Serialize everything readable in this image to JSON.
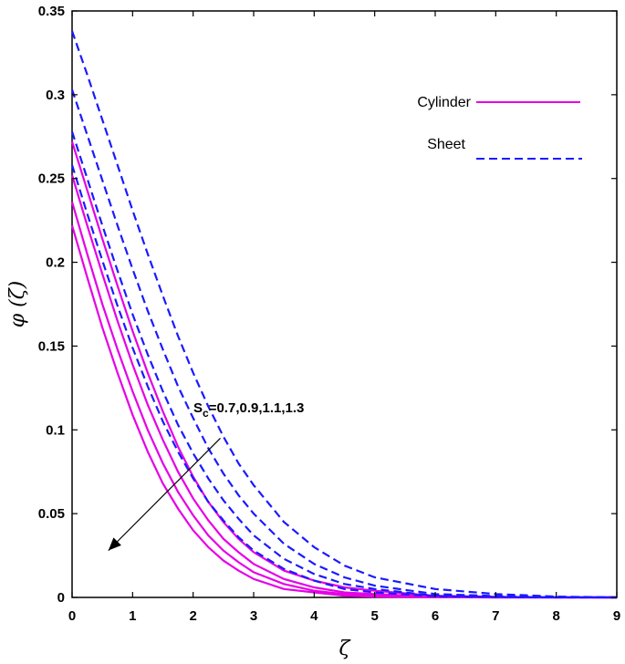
{
  "chart_data": {
    "type": "line",
    "xlabel": "ζ",
    "ylabel": "φ (ζ)",
    "xlim": [
      0,
      9
    ],
    "ylim": [
      0,
      0.35
    ],
    "xticks": [
      "0",
      "1",
      "2",
      "3",
      "4",
      "5",
      "6",
      "7",
      "8",
      "9"
    ],
    "yticks": [
      "0",
      "0.05",
      "0.1",
      "0.15",
      "0.2",
      "0.25",
      "0.3",
      "0.35"
    ],
    "grid": false,
    "legend": {
      "position": "top-right",
      "entries": [
        {
          "label": "Cylinder",
          "color": "#e600e6",
          "style": "solid"
        },
        {
          "label": "Sheet",
          "color": "#1a1aff",
          "style": "dashed"
        }
      ]
    },
    "annotation": {
      "base": "S",
      "subscript": "c",
      "text": "=0.7,0.9,1.1,1.3",
      "arrow_from": [
        2.45,
        0.095
      ],
      "arrow_to": [
        0.6,
        0.028
      ]
    },
    "series": [
      {
        "group": "Cylinder",
        "color": "#e600e6",
        "dash": false,
        "x": [
          0,
          0.25,
          0.5,
          0.75,
          1,
          1.25,
          1.5,
          1.75,
          2,
          2.25,
          2.5,
          2.75,
          3,
          3.5,
          4,
          4.5,
          5,
          6,
          7,
          8,
          9
        ],
        "y": [
          0.272,
          0.243,
          0.214,
          0.186,
          0.159,
          0.134,
          0.111,
          0.09,
          0.072,
          0.057,
          0.045,
          0.035,
          0.027,
          0.016,
          0.01,
          0.006,
          0.004,
          0.001,
          0.0004,
          0.0001,
          0.0
        ]
      },
      {
        "group": "Cylinder",
        "color": "#e600e6",
        "dash": false,
        "x": [
          0,
          0.25,
          0.5,
          0.75,
          1,
          1.25,
          1.5,
          1.75,
          2,
          2.25,
          2.5,
          2.75,
          3,
          3.5,
          4,
          4.5,
          5,
          6,
          7,
          8,
          9
        ],
        "y": [
          0.252,
          0.222,
          0.193,
          0.165,
          0.139,
          0.115,
          0.094,
          0.075,
          0.059,
          0.046,
          0.035,
          0.027,
          0.02,
          0.011,
          0.006,
          0.003,
          0.002,
          0.0005,
          0.0001,
          0.0,
          0.0
        ]
      },
      {
        "group": "Cylinder",
        "color": "#e600e6",
        "dash": false,
        "x": [
          0,
          0.25,
          0.5,
          0.75,
          1,
          1.25,
          1.5,
          1.75,
          2,
          2.25,
          2.5,
          2.75,
          3,
          3.5,
          4,
          4.5,
          5,
          6,
          7,
          8,
          9
        ],
        "y": [
          0.236,
          0.205,
          0.175,
          0.148,
          0.123,
          0.1,
          0.08,
          0.063,
          0.049,
          0.037,
          0.028,
          0.021,
          0.015,
          0.008,
          0.004,
          0.002,
          0.001,
          0.0002,
          0.0,
          0.0,
          0.0
        ]
      },
      {
        "group": "Cylinder",
        "color": "#e600e6",
        "dash": false,
        "x": [
          0,
          0.25,
          0.5,
          0.75,
          1,
          1.25,
          1.5,
          1.75,
          2,
          2.25,
          2.5,
          2.75,
          3,
          3.5,
          4,
          4.5,
          5,
          6,
          7,
          8,
          9
        ],
        "y": [
          0.222,
          0.191,
          0.161,
          0.134,
          0.109,
          0.087,
          0.068,
          0.053,
          0.04,
          0.03,
          0.022,
          0.016,
          0.011,
          0.005,
          0.003,
          0.001,
          0.0005,
          0.0001,
          0.0,
          0.0,
          0.0
        ]
      },
      {
        "group": "Sheet",
        "color": "#1a1aff",
        "dash": true,
        "x": [
          0,
          0.25,
          0.5,
          0.75,
          1,
          1.25,
          1.5,
          1.75,
          2,
          2.25,
          2.5,
          2.75,
          3,
          3.5,
          4,
          4.5,
          5,
          6,
          7,
          8,
          9
        ],
        "y": [
          0.338,
          0.312,
          0.285,
          0.258,
          0.231,
          0.205,
          0.18,
          0.156,
          0.134,
          0.114,
          0.096,
          0.08,
          0.067,
          0.045,
          0.03,
          0.019,
          0.012,
          0.005,
          0.002,
          0.0005,
          0.0
        ]
      },
      {
        "group": "Sheet",
        "color": "#1a1aff",
        "dash": true,
        "x": [
          0,
          0.25,
          0.5,
          0.75,
          1,
          1.25,
          1.5,
          1.75,
          2,
          2.25,
          2.5,
          2.75,
          3,
          3.5,
          4,
          4.5,
          5,
          6,
          7,
          8,
          9
        ],
        "y": [
          0.303,
          0.276,
          0.249,
          0.222,
          0.196,
          0.171,
          0.148,
          0.126,
          0.107,
          0.089,
          0.074,
          0.061,
          0.05,
          0.032,
          0.02,
          0.012,
          0.007,
          0.002,
          0.0008,
          0.0002,
          0.0
        ]
      },
      {
        "group": "Sheet",
        "color": "#1a1aff",
        "dash": true,
        "x": [
          0,
          0.25,
          0.5,
          0.75,
          1,
          1.25,
          1.5,
          1.75,
          2,
          2.25,
          2.5,
          2.75,
          3,
          3.5,
          4,
          4.5,
          5,
          6,
          7,
          8,
          9
        ],
        "y": [
          0.278,
          0.25,
          0.222,
          0.195,
          0.169,
          0.145,
          0.123,
          0.103,
          0.086,
          0.071,
          0.058,
          0.047,
          0.037,
          0.023,
          0.014,
          0.008,
          0.005,
          0.001,
          0.0004,
          0.0001,
          0.0
        ]
      },
      {
        "group": "Sheet",
        "color": "#1a1aff",
        "dash": true,
        "x": [
          0,
          0.25,
          0.5,
          0.75,
          1,
          1.25,
          1.5,
          1.75,
          2,
          2.25,
          2.5,
          2.75,
          3,
          3.5,
          4,
          4.5,
          5,
          6,
          7,
          8,
          9
        ],
        "y": [
          0.258,
          0.229,
          0.201,
          0.174,
          0.149,
          0.126,
          0.105,
          0.087,
          0.071,
          0.057,
          0.046,
          0.036,
          0.028,
          0.017,
          0.01,
          0.005,
          0.003,
          0.0007,
          0.0002,
          0.0,
          0.0
        ]
      }
    ]
  }
}
